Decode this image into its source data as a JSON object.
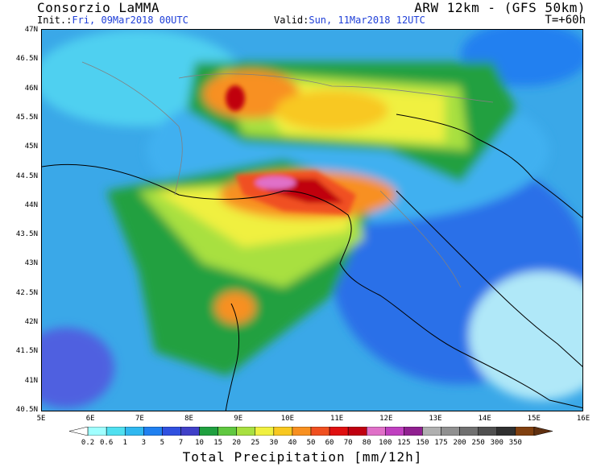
{
  "header": {
    "org": "Consorzio LaMMA",
    "model": "ARW 12km - (GFS 50km)",
    "init_label": "Init.:",
    "init_value": "Fri, 09Mar2018 00UTC",
    "valid_label": "Valid:",
    "valid_value": "Sun, 11Mar2018 12UTC",
    "step": "T=+60h"
  },
  "axes": {
    "lat_labels": [
      "47N",
      "46.5N",
      "46N",
      "45.5N",
      "45N",
      "44.5N",
      "44N",
      "43.5N",
      "43N",
      "42.5N",
      "42N",
      "41.5N",
      "41N",
      "40.5N"
    ],
    "lon_labels": [
      "5E",
      "6E",
      "7E",
      "8E",
      "9E",
      "10E",
      "11E",
      "12E",
      "13E",
      "14E",
      "15E",
      "16E"
    ]
  },
  "colorbar": {
    "title": "Total Precipitation [mm/12h]",
    "labels": [
      "0.2",
      "0.6",
      "1",
      "3",
      "5",
      "7",
      "10",
      "15",
      "20",
      "25",
      "30",
      "40",
      "50",
      "60",
      "70",
      "80",
      "100",
      "125",
      "150",
      "175",
      "200",
      "250",
      "300",
      "350"
    ],
    "colors": [
      "#ffffff",
      "#a0ffff",
      "#50e0f0",
      "#30b8f0",
      "#2080f0",
      "#3050e0",
      "#4040c8",
      "#20a040",
      "#60c840",
      "#a8e040",
      "#f0f040",
      "#f8c820",
      "#f89020",
      "#f05020",
      "#e01010",
      "#c00010",
      "#e070c8",
      "#c040c0",
      "#902090",
      "#b0b0b0",
      "#909090",
      "#707070",
      "#505050",
      "#303030",
      "#804010",
      "#603010"
    ]
  },
  "colors": {
    "coast": "#000000",
    "border": "#808080",
    "rivers": "#2050c0",
    "bg": "#4fc8f0"
  }
}
